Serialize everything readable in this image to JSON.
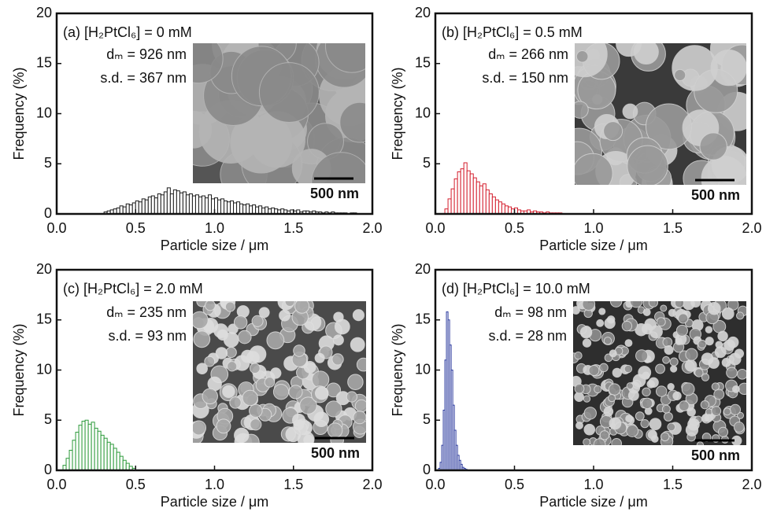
{
  "chart_data": [
    {
      "type": "histogram",
      "annotation": "(a) [H₂PtCl₆] = 0 mM",
      "mean_label": "dₘ = 926 nm",
      "sd_label": "s.d. = 367 nm",
      "scale_bar": "500 nm",
      "xlabel": "Particle size / μm",
      "ylabel": "Frequency (%)",
      "color": "#1a1a1a",
      "xlim": [
        0,
        2.0
      ],
      "xticks": [
        {
          "value": 0,
          "label": "0.0"
        },
        {
          "value": 0.5,
          "label": "0.5"
        },
        {
          "value": 1,
          "label": "1.0"
        },
        {
          "value": 1.5,
          "label": "1.5"
        },
        {
          "value": 2,
          "label": "2.0"
        }
      ],
      "ylim": [
        0,
        20
      ],
      "yticks": [
        0,
        5,
        10,
        15,
        20
      ],
      "bins": [
        0.3,
        0.32,
        0.34,
        0.36,
        0.38,
        0.4,
        0.42,
        0.44,
        0.46,
        0.48,
        0.5,
        0.52,
        0.54,
        0.56,
        0.58,
        0.6,
        0.62,
        0.64,
        0.66,
        0.68,
        0.7,
        0.72,
        0.74,
        0.76,
        0.78,
        0.8,
        0.82,
        0.84,
        0.86,
        0.88,
        0.9,
        0.92,
        0.94,
        0.96,
        0.98,
        1.0,
        1.02,
        1.04,
        1.06,
        1.08,
        1.1,
        1.12,
        1.14,
        1.16,
        1.18,
        1.2,
        1.22,
        1.24,
        1.26,
        1.28,
        1.3,
        1.32,
        1.34,
        1.36,
        1.38,
        1.4,
        1.42,
        1.44,
        1.46,
        1.48,
        1.5,
        1.52,
        1.54,
        1.56,
        1.58,
        1.6,
        1.62,
        1.64,
        1.66,
        1.68,
        1.7,
        1.72,
        1.74,
        1.76,
        1.78,
        1.8,
        1.82,
        1.84,
        1.86,
        1.88,
        1.9
      ],
      "values": [
        0.2,
        0.3,
        0.4,
        0.5,
        0.6,
        0.8,
        0.7,
        1.0,
        0.9,
        1.1,
        1.3,
        1.2,
        1.5,
        1.4,
        1.7,
        1.8,
        1.6,
        2.0,
        1.9,
        2.2,
        2.6,
        2.0,
        2.4,
        2.3,
        2.1,
        2.2,
        1.9,
        2.0,
        1.8,
        1.9,
        1.7,
        1.8,
        1.6,
        1.9,
        1.5,
        1.6,
        1.4,
        1.5,
        1.3,
        1.2,
        1.3,
        1.1,
        1.2,
        1.0,
        0.9,
        1.0,
        0.8,
        0.9,
        0.7,
        0.8,
        0.6,
        0.7,
        0.5,
        0.6,
        0.5,
        0.4,
        0.5,
        0.4,
        0.3,
        0.4,
        0.3,
        0.4,
        0.2,
        0.3,
        0.3,
        0.2,
        0.3,
        0.2,
        0.2,
        0.1,
        0.2,
        0.1,
        0.2,
        0.1,
        0.1,
        0.1,
        0.1,
        0,
        0.1,
        0.1
      ]
    },
    {
      "type": "histogram",
      "annotation": "(b) [H₂PtCl₆] = 0.5 mM",
      "mean_label": "dₘ = 266 nm",
      "sd_label": "s.d. = 150 nm",
      "scale_bar": "500 nm",
      "xlabel": "Particle size / μm",
      "ylabel": "Frequency (%)",
      "color": "#d41f2e",
      "xlim": [
        0,
        2.0
      ],
      "xticks": [
        {
          "value": 0,
          "label": "0.0"
        },
        {
          "value": 0.5,
          "label": "0.5"
        },
        {
          "value": 1,
          "label": "1.0"
        },
        {
          "value": 1.5,
          "label": "1.5"
        },
        {
          "value": 2,
          "label": "2.0"
        }
      ],
      "ylim": [
        0,
        20
      ],
      "yticks": [
        5,
        10,
        15,
        20
      ],
      "bins": [
        0.06,
        0.08,
        0.1,
        0.12,
        0.14,
        0.16,
        0.18,
        0.2,
        0.22,
        0.24,
        0.26,
        0.28,
        0.3,
        0.32,
        0.34,
        0.36,
        0.38,
        0.4,
        0.42,
        0.44,
        0.46,
        0.48,
        0.5,
        0.52,
        0.54,
        0.56,
        0.58,
        0.6,
        0.62,
        0.64,
        0.66,
        0.68,
        0.7,
        0.72,
        0.74,
        0.76,
        0.78,
        0.8
      ],
      "values": [
        0.5,
        1.5,
        2.5,
        3.5,
        4.2,
        4.5,
        5.1,
        4.3,
        4.0,
        3.6,
        3.2,
        2.8,
        3.0,
        2.4,
        2.0,
        1.7,
        1.4,
        1.2,
        1.0,
        0.8,
        0.7,
        0.5,
        0.6,
        0.4,
        0.3,
        0.3,
        0.4,
        0.2,
        0.3,
        0.2,
        0.2,
        0.1,
        0.2,
        0.1,
        0.1,
        0.1,
        0.1
      ]
    },
    {
      "type": "histogram",
      "annotation": "(c) [H₂PtCl₆] = 2.0 mM",
      "mean_label": "dₘ = 235 nm",
      "sd_label": "s.d. = 93 nm",
      "scale_bar": "500 nm",
      "xlabel": "Particle size / μm",
      "ylabel": "Frequency (%)",
      "color": "#2c9a3a",
      "xlim": [
        0,
        2.0
      ],
      "xticks": [
        {
          "value": 0,
          "label": "0.0"
        },
        {
          "value": 0.5,
          "label": "0.5"
        },
        {
          "value": 1,
          "label": "1.0"
        },
        {
          "value": 1.5,
          "label": "1.5"
        },
        {
          "value": 2,
          "label": "2.0"
        }
      ],
      "ylim": [
        0,
        20
      ],
      "yticks": [
        0,
        5,
        10,
        15,
        20
      ],
      "bins": [
        0.04,
        0.06,
        0.08,
        0.1,
        0.12,
        0.14,
        0.16,
        0.18,
        0.2,
        0.22,
        0.24,
        0.26,
        0.28,
        0.3,
        0.32,
        0.34,
        0.36,
        0.38,
        0.4,
        0.42,
        0.44,
        0.46,
        0.48,
        0.5
      ],
      "values": [
        0.5,
        1.2,
        2.0,
        3.0,
        3.8,
        4.5,
        4.9,
        5.0,
        4.6,
        4.8,
        4.2,
        3.9,
        3.5,
        3.2,
        2.8,
        2.6,
        2.2,
        1.8,
        1.4,
        1.0,
        0.7,
        0.4,
        0.2
      ]
    },
    {
      "type": "histogram",
      "annotation": "(d) [H₂PtCl₆] = 10.0 mM",
      "mean_label": "dₘ = 98 nm",
      "sd_label": "s.d. = 28 nm",
      "scale_bar": "500 nm",
      "xlabel": "Particle size / μm",
      "ylabel": "Frequency (%)",
      "color": "#2b3a9e",
      "xlim": [
        0,
        2.0
      ],
      "xticks": [
        {
          "value": 0,
          "label": "0.0"
        },
        {
          "value": 0.5,
          "label": "0.5"
        },
        {
          "value": 1,
          "label": "1.0"
        },
        {
          "value": 1.5,
          "label": "1.5"
        },
        {
          "value": 2,
          "label": "2.0"
        }
      ],
      "ylim": [
        0,
        20
      ],
      "yticks": [
        0,
        5,
        10,
        15,
        20
      ],
      "bins": [
        0.02,
        0.03,
        0.04,
        0.05,
        0.06,
        0.07,
        0.08,
        0.09,
        0.1,
        0.11,
        0.12,
        0.13,
        0.14,
        0.15,
        0.16,
        0.17,
        0.18,
        0.19,
        0.2
      ],
      "values": [
        0.2,
        0.8,
        2.5,
        6.0,
        11.0,
        15.8,
        15.0,
        12.5,
        10.0,
        6.5,
        4.0,
        2.5,
        1.5,
        1.0,
        0.6,
        0.3,
        0.2,
        0.1
      ]
    }
  ]
}
